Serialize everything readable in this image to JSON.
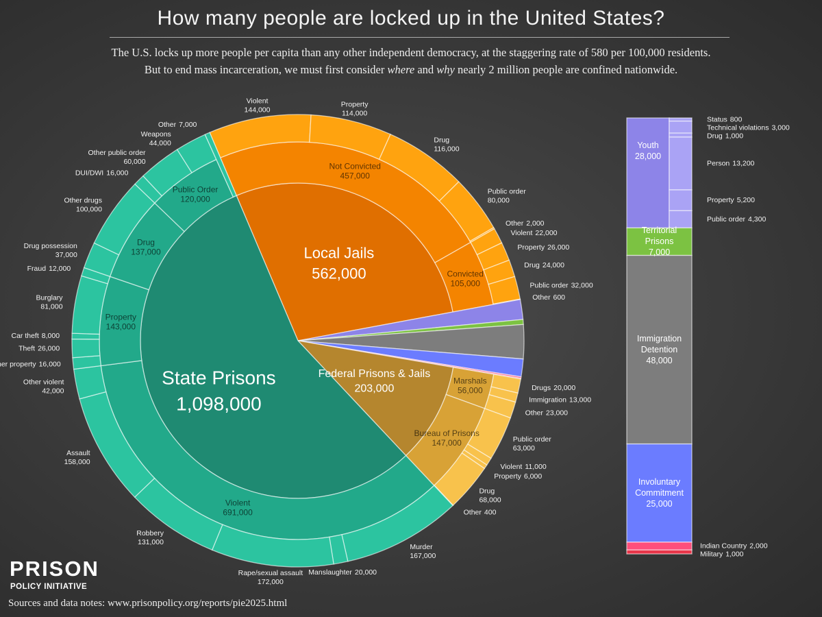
{
  "chart_data": {
    "type": "sunburst",
    "title": "How many people are locked up in the United States?",
    "subtitle": [
      [
        {
          "text": "The U.S. locks up more people per capita than any other independent democracy, at the staggering rate of 580 per 100,000 residents.",
          "italic": false
        }
      ],
      [
        {
          "text": "But to end mass incarceration, we must first consider ",
          "italic": false
        },
        {
          "text": "where",
          "italic": true
        },
        {
          "text": " and ",
          "italic": false
        },
        {
          "text": "why",
          "italic": true
        },
        {
          "text": " nearly 2 million people are confined nationwide.",
          "italic": false
        }
      ]
    ],
    "groups": [
      {
        "name": "Local Jails",
        "value": 562000,
        "value_label": "562,000",
        "colors": [
          "#e06f00",
          "#f48400",
          "#ffa30f"
        ],
        "children": [
          {
            "name": "Not Convicted",
            "value": 457000,
            "value_label": "457,000",
            "children": [
              {
                "name": "Violent",
                "value": 144000,
                "value_label": "144,000"
              },
              {
                "name": "Property",
                "value": 114000,
                "value_label": "114,000"
              },
              {
                "name": "Drug",
                "value": 116000,
                "value_label": "116,000"
              },
              {
                "name": "Public order",
                "value": 80000,
                "value_label": "80,000"
              },
              {
                "name": "Other",
                "value": 2000,
                "value_label": "2,000"
              }
            ]
          },
          {
            "name": "Convicted",
            "value": 105000,
            "value_label": "105,000",
            "children": [
              {
                "name": "Violent",
                "value": 22000,
                "value_label": "22,000"
              },
              {
                "name": "Property",
                "value": 26000,
                "value_label": "26,000"
              },
              {
                "name": "Drug",
                "value": 24000,
                "value_label": "24,000"
              },
              {
                "name": "Public order",
                "value": 32000,
                "value_label": "32,000"
              },
              {
                "name": "Other",
                "value": 600,
                "value_label": "600"
              }
            ]
          }
        ]
      },
      {
        "name": "Youth",
        "value": 28000,
        "value_label": "28,000",
        "color": "#8d84e8",
        "child_color": "#aaa3f5",
        "side": true,
        "children": [
          {
            "name": "Status",
            "value": 800,
            "value_label": "800"
          },
          {
            "name": "Technical violations",
            "value": 3000,
            "value_label": "3,000"
          },
          {
            "name": "Drug",
            "value": 1000,
            "value_label": "1,000"
          },
          {
            "name": "Person",
            "value": 13200,
            "value_label": "13,200"
          },
          {
            "name": "Property",
            "value": 5200,
            "value_label": "5,200"
          },
          {
            "name": "Public order",
            "value": 4300,
            "value_label": "4,300"
          }
        ]
      },
      {
        "name": "Territorial Prisons",
        "value": 7000,
        "value_label": "7,000",
        "color": "#7cc242",
        "side": true
      },
      {
        "name": "Immigration Detention",
        "value": 48000,
        "value_label": "48,000",
        "color": "#7d7d7d",
        "side": true
      },
      {
        "name": "Involuntary Commitment",
        "value": 25000,
        "value_label": "25,000",
        "color": "#6b7cff",
        "side": true
      },
      {
        "name": "Indian Country",
        "value": 2000,
        "value_label": "2,000",
        "color": "#ff4f7b",
        "side": true
      },
      {
        "name": "Military",
        "value": 1000,
        "value_label": "1,000",
        "color": "#e8364a",
        "side": true
      },
      {
        "name": "Federal Prisons & Jails",
        "value": 203000,
        "value_label": "203,000",
        "colors": [
          "#b5862e",
          "#d8a236",
          "#f8c24c"
        ],
        "children": [
          {
            "name": "Marshals",
            "value": 56000,
            "value_label": "56,000",
            "children": [
              {
                "name": "Drugs",
                "value": 20000,
                "value_label": "20,000"
              },
              {
                "name": "Immigration",
                "value": 13000,
                "value_label": "13,000"
              },
              {
                "name": "Other",
                "value": 23000,
                "value_label": "23,000"
              }
            ]
          },
          {
            "name": "Bureau of Prisons",
            "value": 147000,
            "value_label": "147,000",
            "children": [
              {
                "name": "Public order",
                "value": 63000,
                "value_label": "63,000"
              },
              {
                "name": "Violent",
                "value": 11000,
                "value_label": "11,000"
              },
              {
                "name": "Property",
                "value": 6000,
                "value_label": "6,000"
              },
              {
                "name": "Drug",
                "value": 68000,
                "value_label": "68,000"
              },
              {
                "name": "Other",
                "value": 400,
                "value_label": "400"
              }
            ]
          }
        ]
      },
      {
        "name": "State Prisons",
        "value": 1098000,
        "value_label": "1,098,000",
        "colors": [
          "#1f8a72",
          "#22a98a",
          "#2cc4a0"
        ],
        "children": [
          {
            "name": "Violent",
            "value": 691000,
            "value_label": "691,000",
            "children": [
              {
                "name": "Murder",
                "value": 167000,
                "value_label": "167,000"
              },
              {
                "name": "Manslaughter",
                "value": 20000,
                "value_label": "20,000"
              },
              {
                "name": "Rape/sexual assault",
                "value": 172000,
                "value_label": "172,000"
              },
              {
                "name": "Robbery",
                "value": 131000,
                "value_label": "131,000"
              },
              {
                "name": "Assault",
                "value": 158000,
                "value_label": "158,000"
              },
              {
                "name": "Other violent",
                "value": 42000,
                "value_label": "42,000"
              }
            ]
          },
          {
            "name": "Property",
            "value": 143000,
            "value_label": "143,000",
            "children": [
              {
                "name": "Other property",
                "value": 16000,
                "value_label": "16,000"
              },
              {
                "name": "Theft",
                "value": 26000,
                "value_label": "26,000"
              },
              {
                "name": "Car theft",
                "value": 8000,
                "value_label": "8,000"
              },
              {
                "name": "Burglary",
                "value": 81000,
                "value_label": "81,000"
              },
              {
                "name": "Fraud",
                "value": 12000,
                "value_label": "12,000"
              }
            ]
          },
          {
            "name": "Drug",
            "value": 137000,
            "value_label": "137,000",
            "children": [
              {
                "name": "Drug possession",
                "value": 37000,
                "value_label": "37,000"
              },
              {
                "name": "Other drugs",
                "value": 100000,
                "value_label": "100,000"
              }
            ]
          },
          {
            "name": "Public Order",
            "value": 120000,
            "value_label": "120,000",
            "children": [
              {
                "name": "DUI/DWI",
                "value": 16000,
                "value_label": "16,000"
              },
              {
                "name": "Other public order",
                "value": 60000,
                "value_label": "60,000"
              },
              {
                "name": "Weapons",
                "value": 44000,
                "value_label": "44,000"
              }
            ]
          },
          {
            "name": "Other",
            "value": 7000,
            "value_label": "7,000"
          }
        ]
      }
    ]
  },
  "logo": {
    "name": "PRISON",
    "subname": "POLICY INITIATIVE"
  },
  "source": "Sources and data notes: www.prisonpolicy.org/reports/pie2025.html"
}
